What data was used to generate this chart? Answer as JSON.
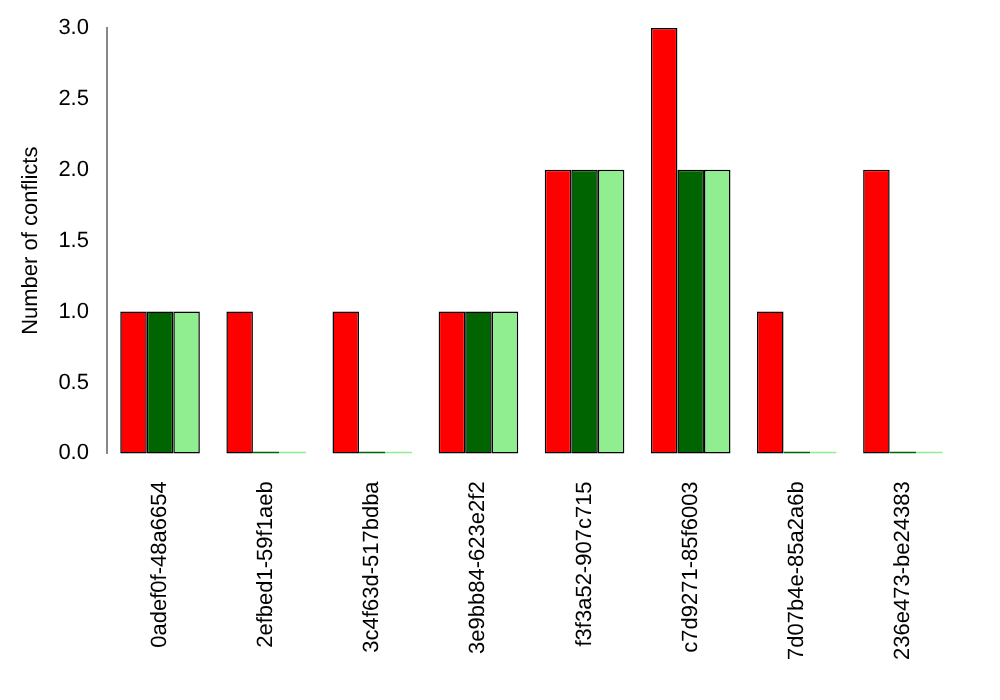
{
  "chart_data": {
    "type": "bar",
    "ylabel": "Number of conflicts",
    "categories": [
      "0adef0f-48a6654",
      "2efbed1-59f1aeb",
      "3c4f63d-517bdba",
      "3e9bb84-623e2f2",
      "f3f3a52-907c715",
      "c7d9271-85f6003",
      "7d07b4e-85a2a6b",
      "236e473-be24383"
    ],
    "series": [
      {
        "color": "#ff0000",
        "values": [
          1,
          1,
          1,
          1,
          2,
          3,
          1,
          2
        ]
      },
      {
        "color": "#006400",
        "values": [
          1,
          0,
          0,
          1,
          2,
          2,
          0,
          0
        ]
      },
      {
        "color": "#90ee90",
        "values": [
          1,
          0,
          0,
          1,
          2,
          2,
          0,
          0
        ]
      }
    ],
    "ylim": [
      0,
      3
    ],
    "yticks": [
      {
        "value": 0,
        "label": "0.0"
      },
      {
        "value": 0.5,
        "label": "0.5"
      },
      {
        "value": 1,
        "label": "1.0"
      },
      {
        "value": 1.5,
        "label": "1.5"
      },
      {
        "value": 2,
        "label": "2.0"
      },
      {
        "value": 2.5,
        "label": "2.5"
      },
      {
        "value": 3,
        "label": "3.0"
      }
    ],
    "grid": false,
    "legend": false
  }
}
